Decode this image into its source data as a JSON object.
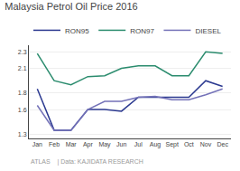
{
  "chart_data": {
    "type": "line",
    "title": "Malaysia Petrol Oil Price 2016",
    "categories": [
      "Jan",
      "Feb",
      "Mar",
      "Apr",
      "May",
      "Jun",
      "Jul",
      "Aug",
      "Sept",
      "Oct",
      "Nov",
      "Dec"
    ],
    "series": [
      {
        "name": "RON95",
        "color": "#2b3990",
        "values": [
          1.85,
          1.35,
          1.35,
          1.6,
          1.6,
          1.58,
          1.75,
          1.75,
          1.75,
          1.75,
          1.95,
          1.88
        ]
      },
      {
        "name": "RON97",
        "color": "#2b8c6e",
        "values": [
          2.28,
          1.95,
          1.9,
          2.0,
          2.01,
          2.1,
          2.13,
          2.13,
          2.01,
          2.01,
          2.3,
          2.28
        ]
      },
      {
        "name": "DIESEL",
        "color": "#7472b8",
        "values": [
          1.65,
          1.35,
          1.35,
          1.6,
          1.7,
          1.7,
          1.75,
          1.76,
          1.72,
          1.72,
          1.78,
          1.85
        ]
      }
    ],
    "ylim": [
      1.25,
      2.38
    ],
    "yticks": [
      1.3,
      1.6,
      1.8,
      2.1,
      2.3
    ],
    "grid": true,
    "legend": "top",
    "annotations": [
      "ATLAS    | Data: KAJIDATA RESEARCH"
    ]
  }
}
